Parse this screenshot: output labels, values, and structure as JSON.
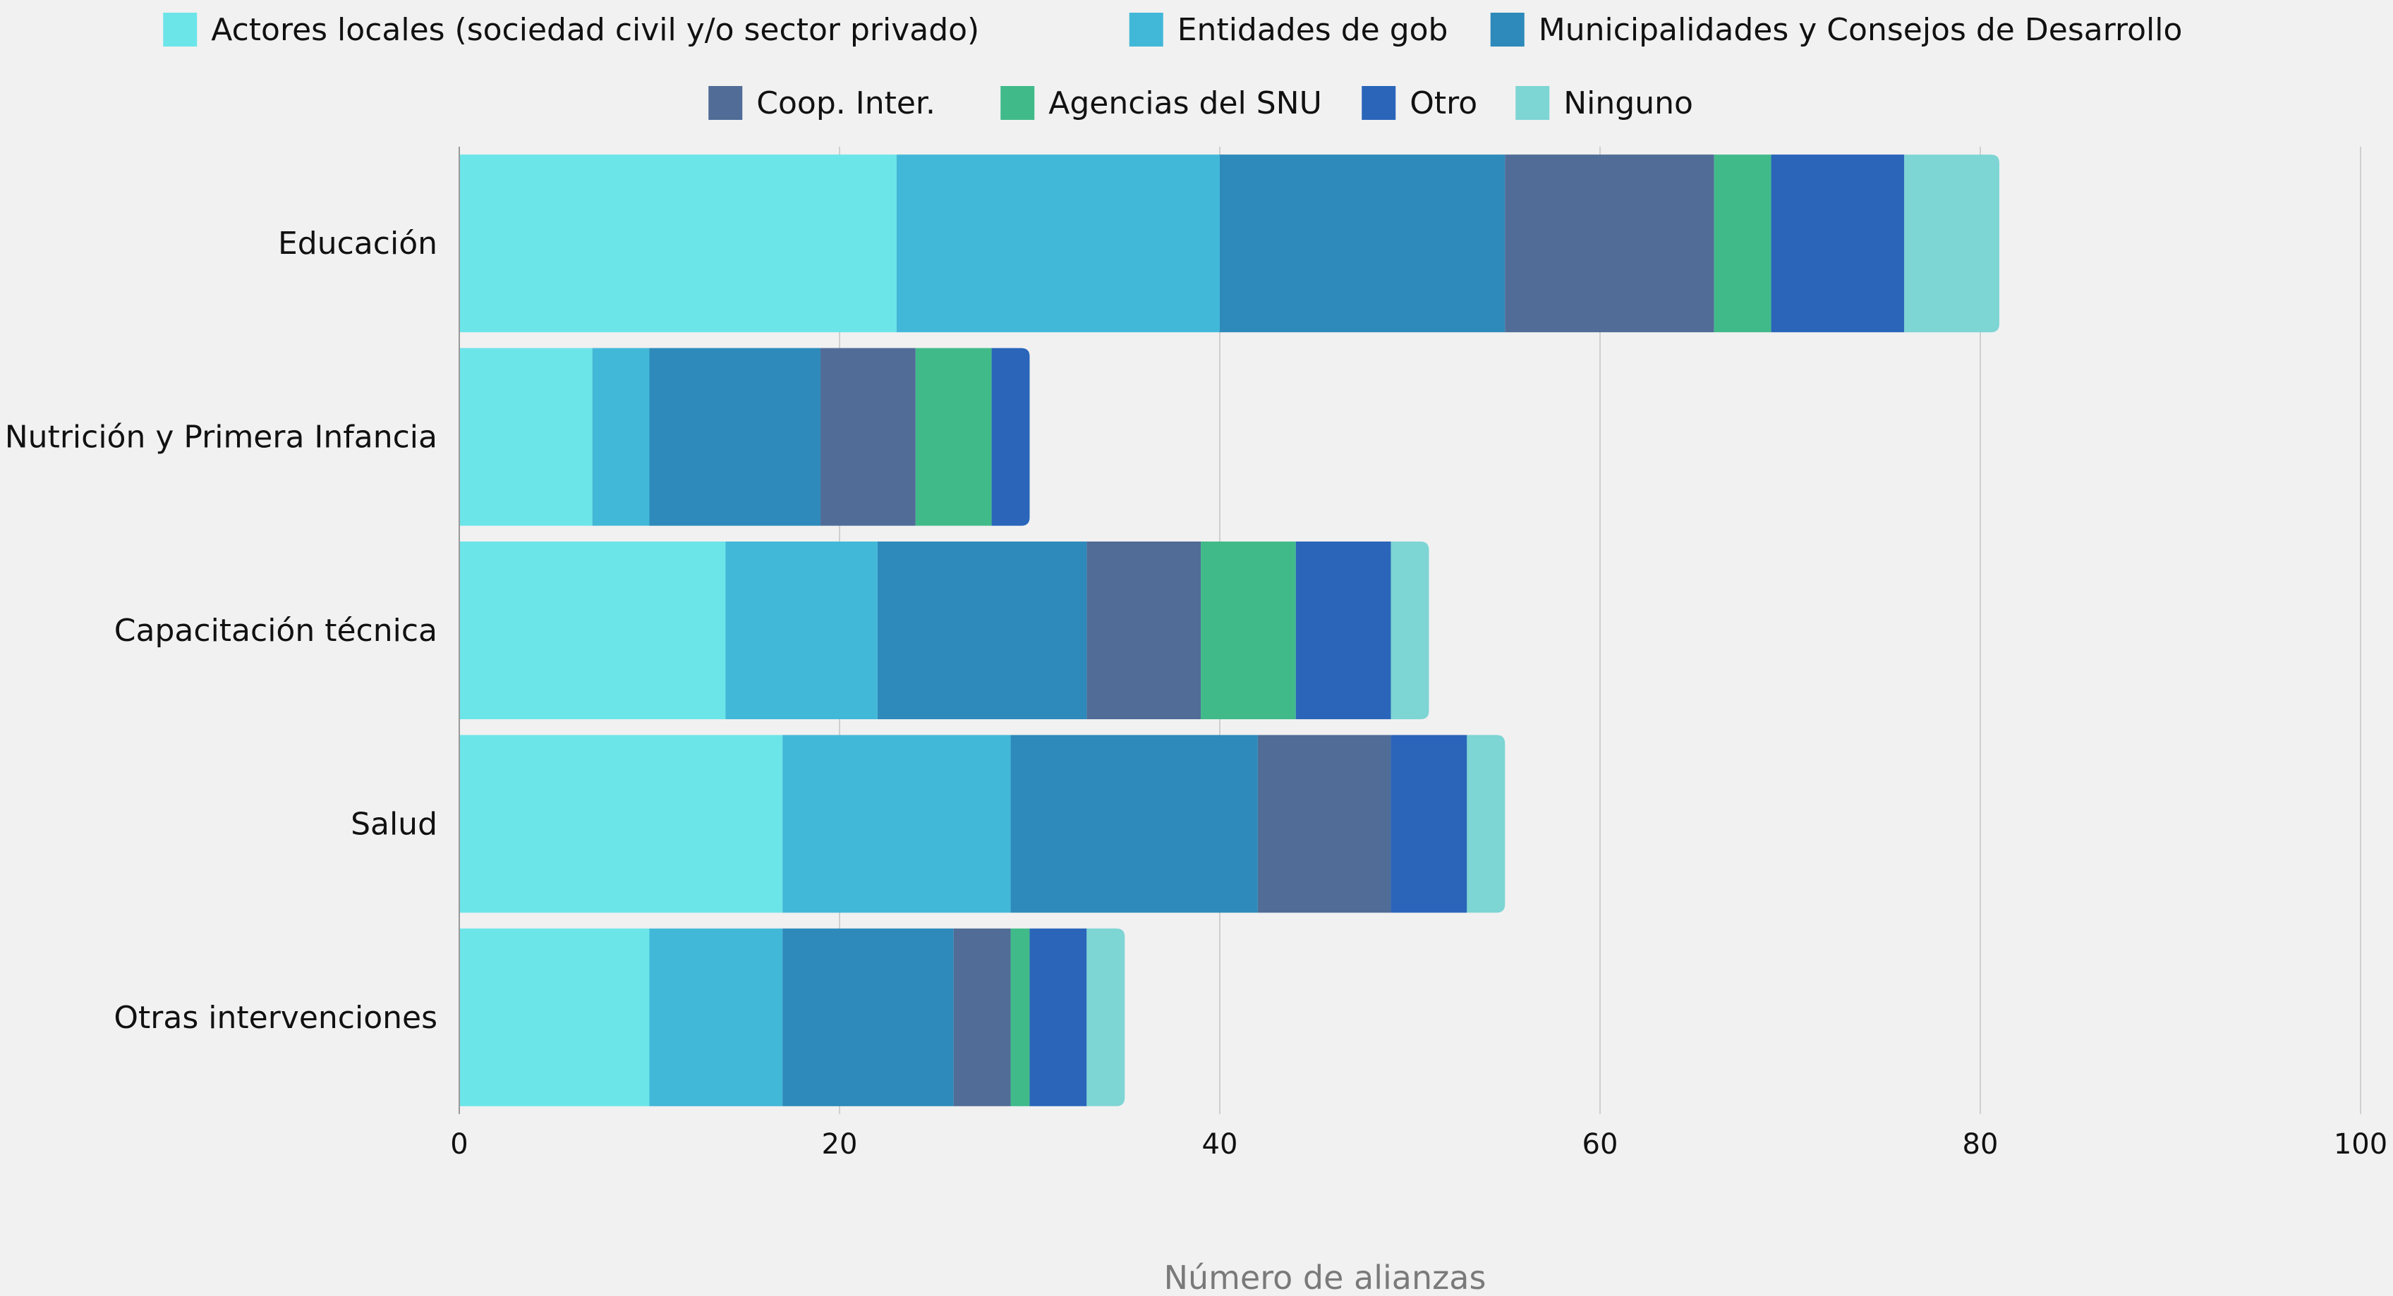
{
  "chart_data": {
    "type": "bar",
    "orientation": "horizontal",
    "stacked": true,
    "title": "",
    "xlabel": "Número de alianzas",
    "ylabel": "",
    "xlim": [
      0,
      100
    ],
    "xticks": [
      0,
      20,
      40,
      60,
      80,
      100
    ],
    "grid": true,
    "legend_position": "top",
    "categories": [
      "Educación",
      "Nutrición y Primera Infancia",
      "Capacitación técnica",
      "Salud",
      "Otras intervenciones"
    ],
    "series": [
      {
        "name": "Actores locales (sociedad civil y/o sector privado)",
        "color": "#6ce5e9",
        "values": [
          23,
          7,
          14,
          17,
          10
        ]
      },
      {
        "name": "Entidades de gob",
        "color": "#42b8d8",
        "values": [
          17,
          3,
          8,
          12,
          7
        ]
      },
      {
        "name": "Municipalidades y Consejos de Desarrollo",
        "color": "#2d8aba",
        "values": [
          15,
          9,
          11,
          13,
          9
        ]
      },
      {
        "name": "Coop. Inter.",
        "color": "#506c97",
        "values": [
          11,
          5,
          6,
          7,
          3
        ]
      },
      {
        "name": "Agencias del SNU",
        "color": "#41ba8a",
        "values": [
          3,
          4,
          5,
          0,
          1
        ]
      },
      {
        "name": "Otro",
        "color": "#2a65ba",
        "values": [
          7,
          2,
          5,
          4,
          3
        ]
      },
      {
        "name": "Ninguno",
        "color": "#7dd5d4",
        "values": [
          5,
          0,
          2,
          2,
          2
        ]
      }
    ]
  }
}
